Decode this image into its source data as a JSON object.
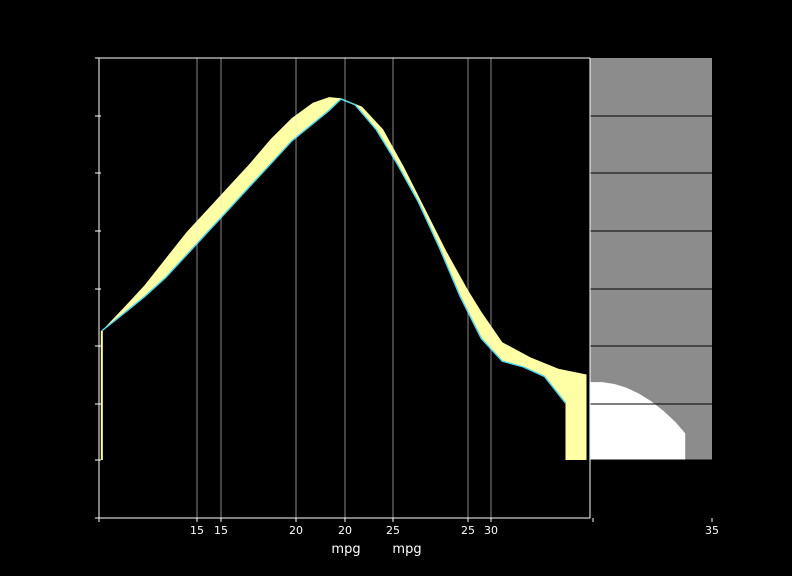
{
  "chart_data": {
    "type": "area",
    "xlabels": [
      "mpg",
      "mpg"
    ],
    "x_ticks": [
      15,
      15,
      20,
      20,
      25,
      25,
      30,
      "35"
    ],
    "grid": true,
    "colors": {
      "background": "#000000",
      "panel": "#000000",
      "right_panel": "#8c8c8c",
      "band_fill": "#ffffa6",
      "curve_line": "#4fd6e6",
      "density_right": "#ffffff",
      "gridline": "#e6e6e6",
      "axis": "#ffffff"
    },
    "series": [
      {
        "values_upper": [
          [
            -7.1,
            0.34
          ],
          [
            -4.0,
            0.4
          ],
          [
            -1.0,
            0.46
          ],
          [
            2.0,
            0.53
          ],
          [
            5.0,
            0.6
          ],
          [
            8.0,
            0.66
          ],
          [
            11.0,
            0.72
          ],
          [
            14.0,
            0.78
          ],
          [
            17.0,
            0.845
          ],
          [
            20.0,
            0.9
          ],
          [
            23.0,
            0.94
          ],
          [
            25.3,
            0.955
          ],
          [
            27.0,
            0.952
          ],
          [
            30.0,
            0.93
          ],
          [
            33.0,
            0.87
          ],
          [
            36.0,
            0.77
          ],
          [
            39.0,
            0.66
          ],
          [
            42.0,
            0.55
          ],
          [
            45.0,
            0.45
          ],
          [
            47.0,
            0.39
          ],
          [
            50.0,
            0.31
          ],
          [
            54.0,
            0.27
          ],
          [
            58.0,
            0.24
          ],
          [
            62.0,
            0.225
          ]
        ],
        "values_lower": [
          [
            -7.1,
            0.34
          ],
          [
            -4.0,
            0.385
          ],
          [
            -1.0,
            0.43
          ],
          [
            2.0,
            0.48
          ],
          [
            5.0,
            0.54
          ],
          [
            8.0,
            0.6
          ],
          [
            11.0,
            0.66
          ],
          [
            14.0,
            0.72
          ],
          [
            17.0,
            0.78
          ],
          [
            20.0,
            0.84
          ],
          [
            23.0,
            0.885
          ],
          [
            25.3,
            0.92
          ],
          [
            27.0,
            0.95
          ],
          [
            29.0,
            0.935
          ],
          [
            32.0,
            0.87
          ],
          [
            35.0,
            0.78
          ],
          [
            38.0,
            0.68
          ],
          [
            41.0,
            0.56
          ],
          [
            44.0,
            0.43
          ],
          [
            47.0,
            0.32
          ],
          [
            50.0,
            0.26
          ],
          [
            53.0,
            0.245
          ],
          [
            56.0,
            0.22
          ],
          [
            59.0,
            0.15
          ]
        ],
        "spike": [
          [
            -7.1,
            0.0
          ],
          [
            -7.1,
            0.34
          ]
        ],
        "box_end": [
          [
            59.0,
            0.15
          ],
          [
            59.0,
            0.0
          ],
          [
            62.0,
            0.0
          ],
          [
            62.0,
            0.225
          ]
        ]
      }
    ],
    "right_panel_density": [
      [
        0.0,
        0.205
      ],
      [
        0.1,
        0.205
      ],
      [
        0.2,
        0.2
      ],
      [
        0.3,
        0.19
      ],
      [
        0.4,
        0.175
      ],
      [
        0.5,
        0.155
      ],
      [
        0.6,
        0.13
      ],
      [
        0.7,
        0.1
      ],
      [
        0.78,
        0.07
      ],
      [
        0.78,
        0.0
      ],
      [
        0.0,
        0.0
      ]
    ]
  }
}
